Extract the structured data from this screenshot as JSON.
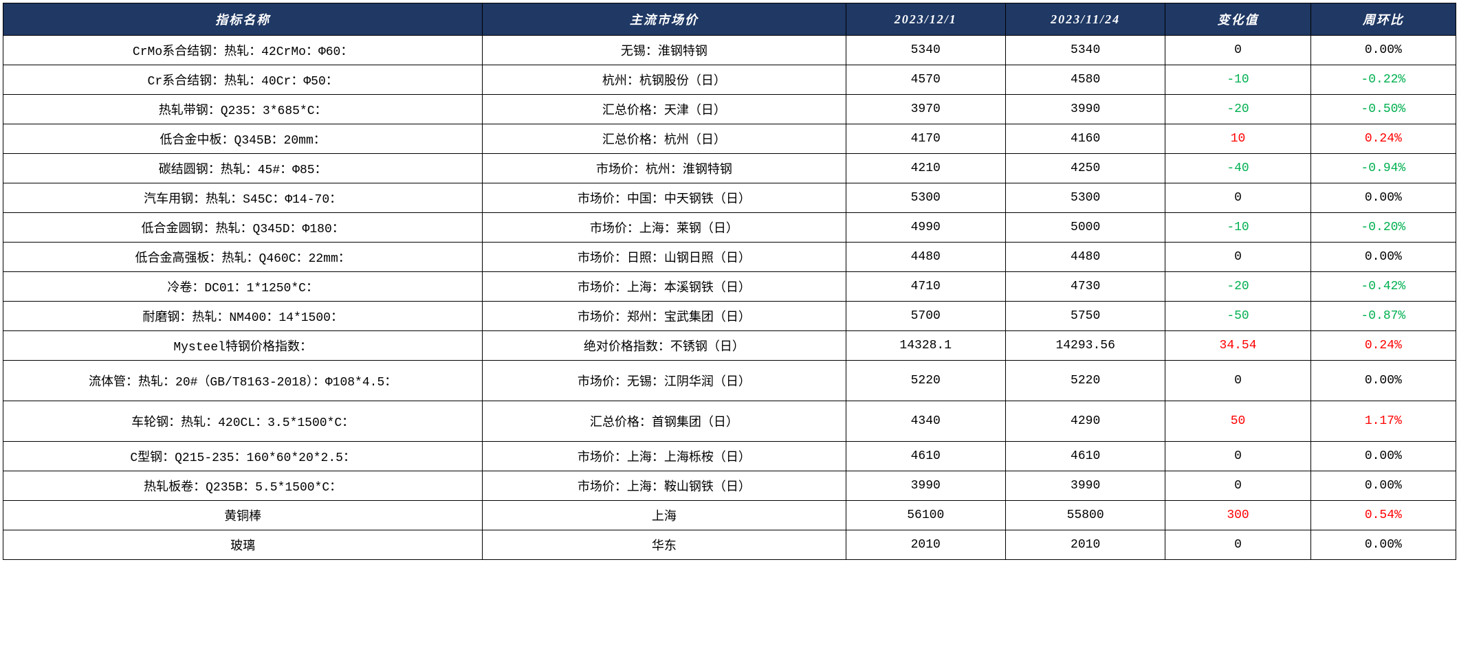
{
  "table": {
    "type": "table",
    "header_bg_color": "#1f3864",
    "header_text_color": "#ffffff",
    "border_color": "#000000",
    "background_color": "#ffffff",
    "neg_color": "#00b050",
    "pos_color": "#ff0000",
    "columns": [
      {
        "key": "name",
        "label": "指标名称",
        "width_pct": 33,
        "align": "center"
      },
      {
        "key": "market",
        "label": "主流市场价",
        "width_pct": 25,
        "align": "center"
      },
      {
        "key": "d1",
        "label": "2023/12/1",
        "width_pct": 11,
        "align": "center"
      },
      {
        "key": "d2",
        "label": "2023/11/24",
        "width_pct": 11,
        "align": "center"
      },
      {
        "key": "chg",
        "label": "变化值",
        "width_pct": 10,
        "align": "center"
      },
      {
        "key": "pct",
        "label": "周环比",
        "width_pct": 10,
        "align": "center"
      }
    ],
    "rows": [
      {
        "name": "CrMo系合结钢：热轧：42CrMo：Φ60：",
        "market": "无锡：淮钢特钢",
        "d1": "5340",
        "d2": "5340",
        "chg": "0",
        "pct": "0.00%",
        "dir": "zero",
        "tall": false
      },
      {
        "name": "Cr系合结钢：热轧：40Cr：Φ50：",
        "market": "杭州：杭钢股份（日）",
        "d1": "4570",
        "d2": "4580",
        "chg": "-10",
        "pct": "-0.22%",
        "dir": "neg",
        "tall": false
      },
      {
        "name": "热轧带钢：Q235：3*685*C：",
        "market": "汇总价格：天津（日）",
        "d1": "3970",
        "d2": "3990",
        "chg": "-20",
        "pct": "-0.50%",
        "dir": "neg",
        "tall": false
      },
      {
        "name": "低合金中板：Q345B：20mm：",
        "market": "汇总价格：杭州（日）",
        "d1": "4170",
        "d2": "4160",
        "chg": "10",
        "pct": "0.24%",
        "dir": "pos",
        "tall": false
      },
      {
        "name": "碳结圆钢：热轧：45#：Φ85：",
        "market": "市场价：杭州：淮钢特钢",
        "d1": "4210",
        "d2": "4250",
        "chg": "-40",
        "pct": "-0.94%",
        "dir": "neg",
        "tall": false
      },
      {
        "name": "汽车用钢：热轧：S45C：Φ14-70：",
        "market": "市场价：中国：中天钢铁（日）",
        "d1": "5300",
        "d2": "5300",
        "chg": "0",
        "pct": "0.00%",
        "dir": "zero",
        "tall": false
      },
      {
        "name": "低合金圆钢：热轧：Q345D：Φ180：",
        "market": "市场价：上海：莱钢（日）",
        "d1": "4990",
        "d2": "5000",
        "chg": "-10",
        "pct": "-0.20%",
        "dir": "neg",
        "tall": false
      },
      {
        "name": "低合金高强板：热轧：Q460C：22mm：",
        "market": "市场价：日照：山钢日照（日）",
        "d1": "4480",
        "d2": "4480",
        "chg": "0",
        "pct": "0.00%",
        "dir": "zero",
        "tall": false
      },
      {
        "name": "冷卷：DC01：1*1250*C：",
        "market": "市场价：上海：本溪钢铁（日）",
        "d1": "4710",
        "d2": "4730",
        "chg": "-20",
        "pct": "-0.42%",
        "dir": "neg",
        "tall": false
      },
      {
        "name": "耐磨钢：热轧：NM400：14*1500：",
        "market": "市场价：郑州：宝武集团（日）",
        "d1": "5700",
        "d2": "5750",
        "chg": "-50",
        "pct": "-0.87%",
        "dir": "neg",
        "tall": false
      },
      {
        "name": "Mysteel特钢价格指数：",
        "market": "绝对价格指数：不锈钢（日）",
        "d1": "14328.1",
        "d2": "14293.56",
        "chg": "34.54",
        "pct": "0.24%",
        "dir": "pos",
        "tall": false
      },
      {
        "name": "流体管：热轧：20#（GB/T8163-2018）：Φ108*4.5：",
        "market": "市场价：无锡：江阴华润（日）",
        "d1": "5220",
        "d2": "5220",
        "chg": "0",
        "pct": "0.00%",
        "dir": "zero",
        "tall": true
      },
      {
        "name": "车轮钢：热轧：420CL：3.5*1500*C：",
        "market": "汇总价格：首钢集团（日）",
        "d1": "4340",
        "d2": "4290",
        "chg": "50",
        "pct": "1.17%",
        "dir": "pos",
        "tall": true
      },
      {
        "name": "C型钢：Q215-235：160*60*20*2.5：",
        "market": "市场价：上海：上海栎桉（日）",
        "d1": "4610",
        "d2": "4610",
        "chg": "0",
        "pct": "0.00%",
        "dir": "zero",
        "tall": false
      },
      {
        "name": "热轧板卷：Q235B：5.5*1500*C：",
        "market": "市场价：上海：鞍山钢铁（日）",
        "d1": "3990",
        "d2": "3990",
        "chg": "0",
        "pct": "0.00%",
        "dir": "zero",
        "tall": false
      },
      {
        "name": "黄铜棒",
        "market": "上海",
        "d1": "56100",
        "d2": "55800",
        "chg": "300",
        "pct": "0.54%",
        "dir": "pos",
        "tall": false
      },
      {
        "name": "玻璃",
        "market": "华东",
        "d1": "2010",
        "d2": "2010",
        "chg": "0",
        "pct": "0.00%",
        "dir": "zero",
        "tall": false
      }
    ]
  }
}
